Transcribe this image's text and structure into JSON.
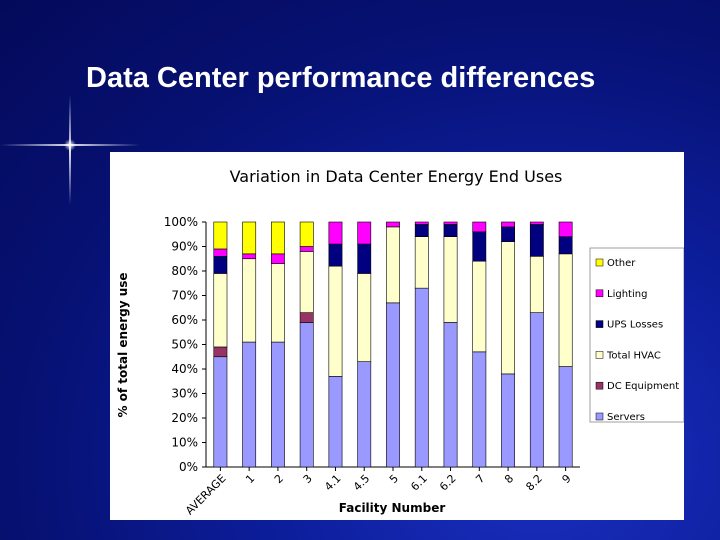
{
  "slide": {
    "title": "Data Center performance differences"
  },
  "colors": {
    "background": "#0a1a8c",
    "Servers": "#9999ff",
    "DC Equipment": "#993366",
    "Total HVAC": "#ffffcc",
    "UPS Losses": "#000080",
    "Lighting": "#ff00ff",
    "Other": "#ffff00"
  },
  "chart_data": {
    "type": "bar",
    "stacked": true,
    "title": "Variation in Data Center Energy End Uses",
    "xlabel": "Facility Number",
    "ylabel": "% of total energy use",
    "ylim": [
      0,
      100
    ],
    "y_ticks": [
      "0%",
      "10%",
      "20%",
      "30%",
      "40%",
      "50%",
      "60%",
      "70%",
      "80%",
      "90%",
      "100%"
    ],
    "grid": false,
    "legend_position": "right",
    "categories": [
      "AVERAGE",
      "1",
      "2",
      "3",
      "4.1",
      "4.5",
      "5",
      "6.1",
      "6.2",
      "7",
      "8",
      "8.2",
      "9"
    ],
    "series": [
      {
        "name": "Servers",
        "values": [
          45,
          51,
          51,
          59,
          37,
          43,
          67,
          73,
          59,
          47,
          38,
          63,
          41
        ]
      },
      {
        "name": "DC Equipment",
        "values": [
          4,
          0,
          0,
          4,
          0,
          0,
          0,
          0,
          0,
          0,
          0,
          0,
          0
        ]
      },
      {
        "name": "Total HVAC",
        "values": [
          30,
          34,
          32,
          25,
          45,
          36,
          31,
          21,
          35,
          37,
          54,
          23,
          46
        ]
      },
      {
        "name": "UPS Losses",
        "values": [
          7,
          0,
          0,
          0,
          9,
          12,
          0,
          5,
          5,
          12,
          6,
          13,
          7
        ]
      },
      {
        "name": "Lighting",
        "values": [
          3,
          2,
          4,
          2,
          9,
          9,
          2,
          1,
          1,
          4,
          2,
          1,
          6
        ]
      },
      {
        "name": "Other",
        "values": [
          11,
          13,
          13,
          10,
          0,
          0,
          0,
          0,
          0,
          0,
          0,
          0,
          0
        ]
      }
    ],
    "legend_order": [
      "Other",
      "Lighting",
      "UPS Losses",
      "Total HVAC",
      "DC Equipment",
      "Servers"
    ],
    "legend_labels": {
      "Other": "Other",
      "Lighting": "Lighting",
      "UPS Losses": "UPS Losses",
      "Total HVAC": "Total HVAC",
      "DC Equipment": "DC Equipment",
      "Servers": "Servers"
    }
  }
}
